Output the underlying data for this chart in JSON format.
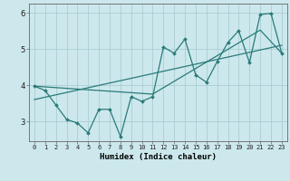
{
  "title": "",
  "xlabel": "Humidex (Indice chaleur)",
  "ylabel": "",
  "bg_color": "#cce8ec",
  "grid_color": "#aacdd4",
  "line_color": "#2a7a7a",
  "xlim": [
    -0.5,
    23.5
  ],
  "ylim": [
    2.45,
    6.25
  ],
  "yticks": [
    3,
    4,
    5,
    6
  ],
  "xticks": [
    0,
    1,
    2,
    3,
    4,
    5,
    6,
    7,
    8,
    9,
    10,
    11,
    12,
    13,
    14,
    15,
    16,
    17,
    18,
    19,
    20,
    21,
    22,
    23
  ],
  "line1_x": [
    0,
    1,
    2,
    3,
    4,
    5,
    6,
    7,
    8,
    9,
    10,
    11,
    12,
    13,
    14,
    15,
    16,
    17,
    18,
    19,
    20,
    21,
    22,
    23
  ],
  "line1_y": [
    3.97,
    3.85,
    3.45,
    3.05,
    2.95,
    2.68,
    3.33,
    3.33,
    2.58,
    3.68,
    3.55,
    3.68,
    5.05,
    4.88,
    5.27,
    4.28,
    4.08,
    4.65,
    5.18,
    5.5,
    4.62,
    5.95,
    5.98,
    4.88
  ],
  "line2_x": [
    0,
    23
  ],
  "line2_y": [
    3.6,
    5.1
  ],
  "line3_x": [
    0,
    11,
    21,
    23
  ],
  "line3_y": [
    3.97,
    3.75,
    5.52,
    4.88
  ]
}
